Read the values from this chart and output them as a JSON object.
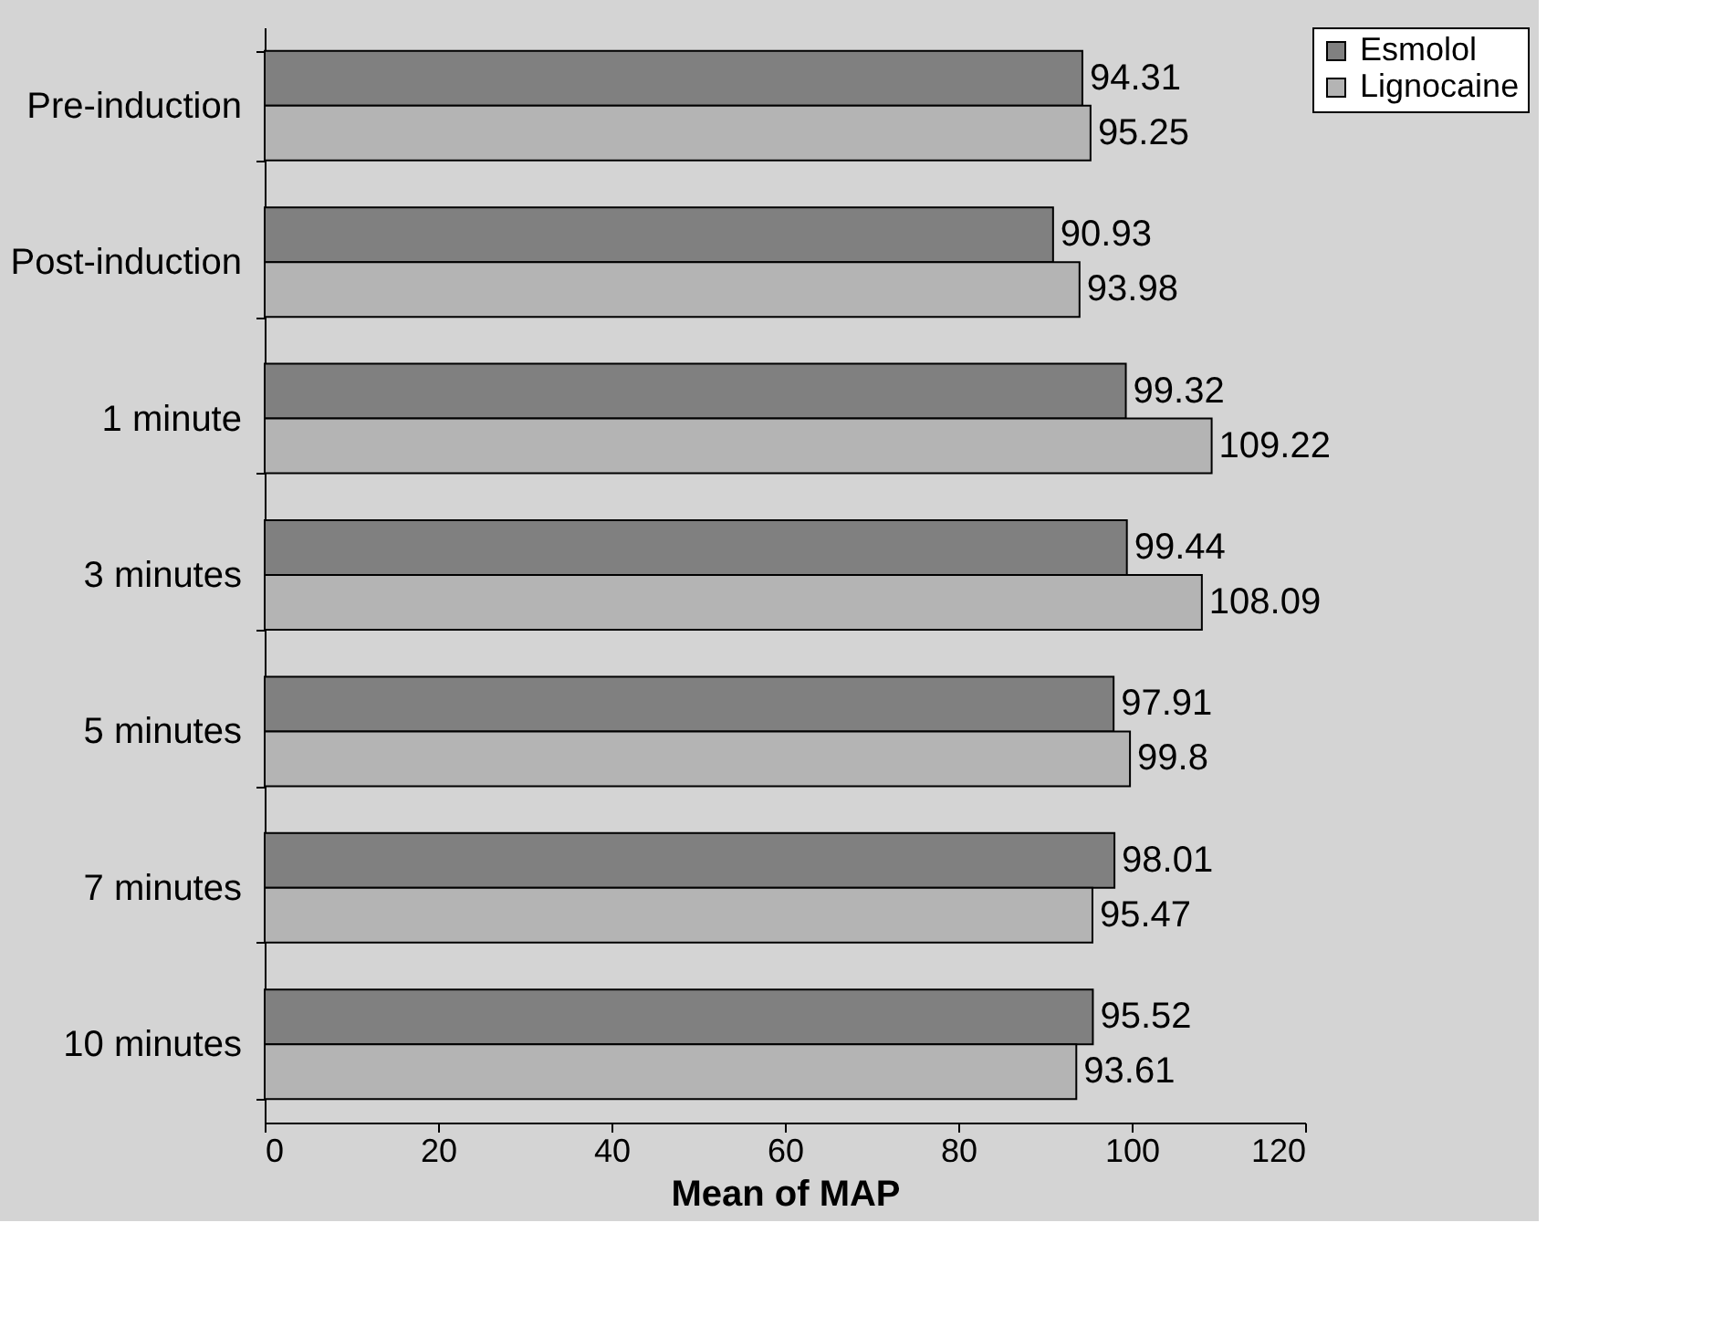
{
  "chart_data": {
    "type": "bar",
    "orientation": "horizontal",
    "xlabel": "Mean of MAP",
    "categories": [
      "Pre-induction",
      "Post-induction",
      "1 minute",
      "3 minutes",
      "5 minutes",
      "7 minutes",
      "10 minutes"
    ],
    "series": [
      {
        "name": "Esmolol",
        "color": "#808080",
        "values": [
          94.31,
          90.93,
          99.32,
          99.44,
          97.91,
          98.01,
          95.52
        ]
      },
      {
        "name": "Lignocaine",
        "color": "#b4b4b4",
        "values": [
          95.25,
          93.98,
          109.22,
          108.09,
          99.8,
          95.47,
          93.61
        ]
      }
    ],
    "xlim": [
      0,
      120
    ],
    "xticks": [
      0,
      20,
      40,
      60,
      80,
      100,
      120
    ],
    "data_labels": true,
    "legend": "top right",
    "grid": false
  }
}
